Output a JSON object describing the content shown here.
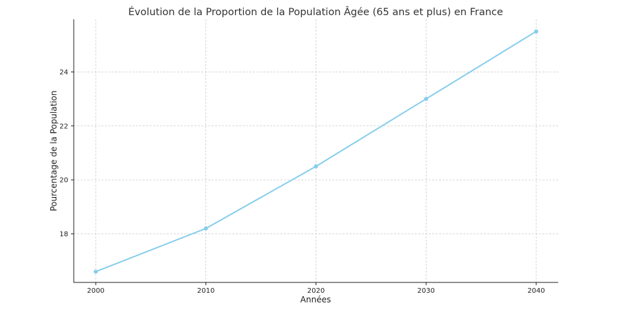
{
  "chart_data": {
    "type": "line",
    "title": "Évolution de la Proportion de la Population Âgée (65 ans et plus) en France",
    "xlabel": "Années",
    "ylabel": "Pourcentage de la Population",
    "x": [
      2000,
      2010,
      2020,
      2030,
      2040
    ],
    "series": [
      {
        "values": [
          16.6,
          18.2,
          20.5,
          23.0,
          25.5
        ],
        "color": "#87ceeb"
      }
    ],
    "xticks": [
      "2000",
      "2010",
      "2020",
      "2030",
      "2040"
    ],
    "yticks": [
      "18",
      "20",
      "22",
      "24"
    ],
    "xlim": [
      1998,
      2042
    ],
    "ylim": [
      16.2,
      25.95
    ],
    "grid": true,
    "marker": "circle"
  }
}
